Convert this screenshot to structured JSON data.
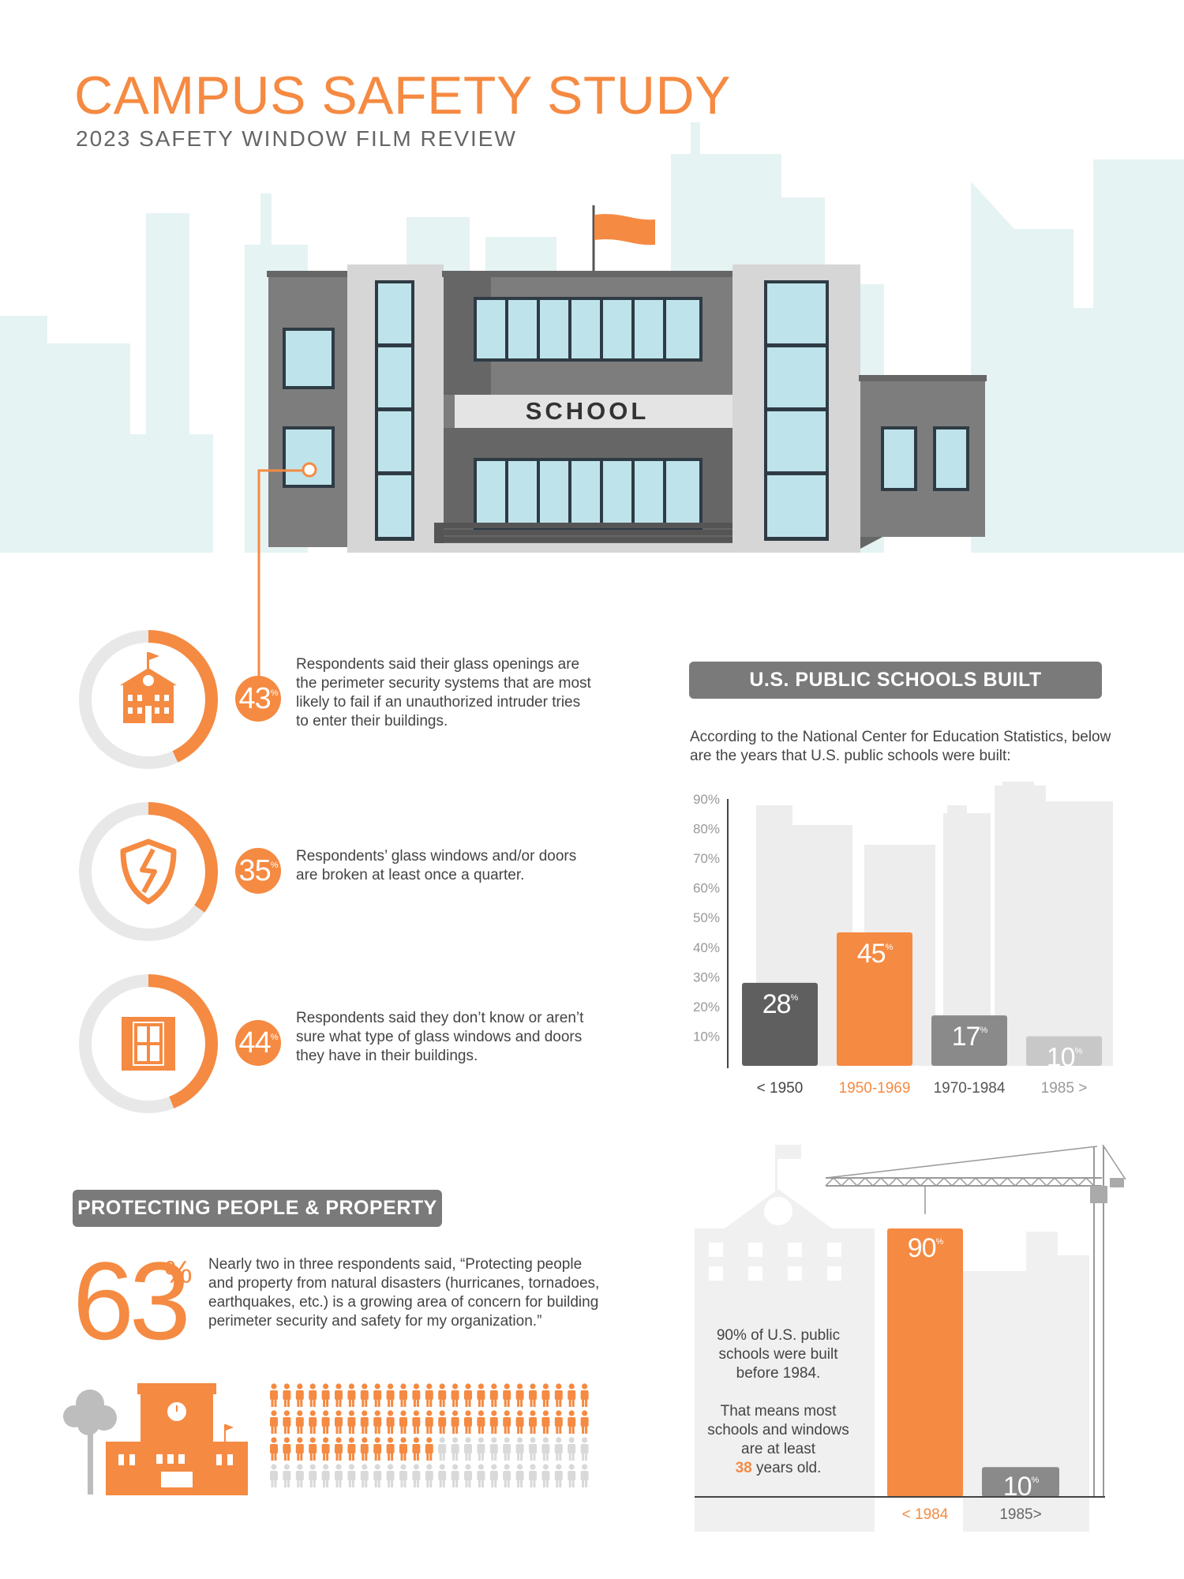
{
  "header": {
    "title": "CAMPUS SAFETY STUDY",
    "subtitle": "2023 SAFETY WINDOW FILM REVIEW",
    "school_sign": "SCHOOL"
  },
  "colors": {
    "accent": "#f58a42",
    "dark_gray": "#5f5f5f",
    "mid_gray": "#8a8a8a",
    "light_gray": "#c8c8c8",
    "sky": "#e6f3f3"
  },
  "stats": [
    {
      "value": "43",
      "unit": "%",
      "ring_fraction": 0.43,
      "icon": "school-icon",
      "text": "Respondents said their glass openings are the perimeter security systems that are most likely to fail if an unauthorized intruder tries to enter their buildings."
    },
    {
      "value": "35",
      "unit": "%",
      "ring_fraction": 0.35,
      "icon": "broken-shield-icon",
      "text": "Respondents’ glass windows and/or doors are broken at least once a quarter."
    },
    {
      "value": "44",
      "unit": "%",
      "ring_fraction": 0.44,
      "icon": "window-icon",
      "text": "Respondents said they don’t know or aren’t sure what type of glass windows and doors they have in their buildings."
    }
  ],
  "built_section": {
    "heading": "U.S. PUBLIC SCHOOLS BUILT",
    "intro": "According to the National Center for Education Statistics, below are the years that U.S. public schools were built:"
  },
  "protect_section": {
    "heading": "PROTECTING PEOPLE & PROPERTY",
    "big_value": "63",
    "big_unit": "%",
    "quote": "Nearly two in three respondents said, “Protecting people and property from natural disasters (hurricanes, tornadoes, earthquakes, etc.) is a growing area of concern for building perimeter security and safety for my organization.”",
    "people_grid": {
      "rows": 4,
      "cols": 25,
      "highlighted": 63
    }
  },
  "age_section": {
    "line1": "90% of U.S. public schools were built before 1984.",
    "line2": "That means most schools and windows are at least",
    "years_value": "38",
    "years_suffix": " years old."
  },
  "chart_data": [
    {
      "type": "bar",
      "title": "U.S. PUBLIC SCHOOLS BUILT",
      "categories": [
        "< 1950",
        "1950-1969",
        "1970-1984",
        "1985 >"
      ],
      "values": [
        28,
        45,
        17,
        10
      ],
      "value_labels": [
        "28",
        "45",
        "17",
        "10"
      ],
      "unit": "%",
      "bar_colors": [
        "#5f5f5f",
        "#f58a42",
        "#8a8a8a",
        "#c8c8c8"
      ],
      "ylim": [
        0,
        90
      ],
      "yticks": [
        "10%",
        "20%",
        "30%",
        "40%",
        "50%",
        "60%",
        "70%",
        "80%",
        "90%"
      ],
      "ytick_values": [
        10,
        20,
        30,
        40,
        50,
        60,
        70,
        80,
        90
      ]
    },
    {
      "type": "bar",
      "categories": [
        "< 1984",
        "1985>"
      ],
      "values": [
        90,
        10
      ],
      "value_labels": [
        "90",
        "10"
      ],
      "unit": "%",
      "bar_colors": [
        "#f58a42",
        "#8a8a8a"
      ],
      "ylim": [
        0,
        100
      ]
    }
  ]
}
